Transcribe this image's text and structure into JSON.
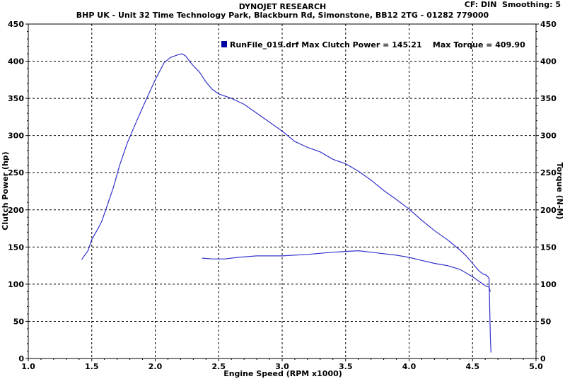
{
  "header": {
    "title": "DYNOJET RESEARCH",
    "subtitle": "BHP UK - Unit 32 Time Technology Park, Blackburn Rd, Simonstone, BB12 2TG - 01282 779000",
    "settings": "CF: DIN  Smoothing: 5"
  },
  "legend": {
    "text": "RunFile_019.drf Max Clutch Power = 145.21    Max Torque = 409.90",
    "color": "#0000A0"
  },
  "chart_data": {
    "type": "line",
    "xlabel": "Engine Speed (RPM x1000)",
    "ylabel": "Clutch Power (hp)",
    "y2label": "Torque (N-M)",
    "xlim": [
      1.0,
      5.0
    ],
    "ylim": [
      0,
      450
    ],
    "y2lim": [
      0,
      450
    ],
    "xticks": [
      "1.0",
      "1.5",
      "2.0",
      "2.5",
      "3.0",
      "3.5",
      "4.0",
      "4.5",
      "5.0"
    ],
    "yticks": [
      "0",
      "50",
      "100",
      "150",
      "200",
      "250",
      "300",
      "350",
      "400",
      "450"
    ],
    "grid": true,
    "series": [
      {
        "name": "Torque",
        "color": "#3333CC",
        "axis": "right",
        "x": [
          1.42,
          1.47,
          1.5,
          1.55,
          1.58,
          1.62,
          1.67,
          1.72,
          1.78,
          1.85,
          1.92,
          2.0,
          2.07,
          2.12,
          2.17,
          2.21,
          2.24,
          2.27,
          2.3,
          2.35,
          2.4,
          2.45,
          2.5,
          2.6,
          2.7,
          2.8,
          2.9,
          3.0,
          3.1,
          3.2,
          3.3,
          3.4,
          3.5,
          3.6,
          3.7,
          3.8,
          3.9,
          4.0,
          4.1,
          4.2,
          4.3,
          4.4,
          4.45,
          4.5,
          4.55,
          4.58,
          4.61,
          4.63,
          4.64,
          4.645
        ],
        "values": [
          133,
          145,
          160,
          175,
          185,
          205,
          230,
          260,
          290,
          318,
          345,
          375,
          398,
          405,
          408,
          410,
          407,
          400,
          394,
          385,
          372,
          362,
          356,
          350,
          342,
          330,
          318,
          306,
          292,
          284,
          278,
          268,
          262,
          252,
          240,
          226,
          214,
          201,
          186,
          172,
          160,
          146,
          138,
          128,
          118,
          114,
          112,
          108,
          30,
          8
        ]
      },
      {
        "name": "Clutch Power",
        "color": "#3333CC",
        "axis": "left",
        "x": [
          2.37,
          2.45,
          2.55,
          2.65,
          2.8,
          3.0,
          3.2,
          3.4,
          3.5,
          3.6,
          3.7,
          3.8,
          3.9,
          4.0,
          4.1,
          4.2,
          4.3,
          4.4,
          4.5,
          4.55,
          4.6,
          4.63,
          4.64
        ],
        "values": [
          135,
          134,
          134,
          136,
          138,
          138,
          140,
          143,
          144,
          145,
          143,
          141,
          139,
          136,
          132,
          128,
          125,
          120,
          110,
          104,
          98,
          96,
          90
        ]
      }
    ]
  }
}
